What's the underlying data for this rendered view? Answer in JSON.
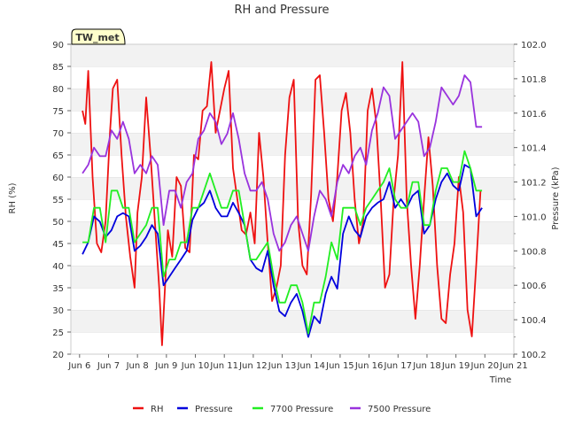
{
  "chart_data": {
    "type": "line",
    "title": "RH and Pressure",
    "station_label": "TW_met",
    "xlabel": "Time",
    "ylabel_left": "RH (%)",
    "ylabel_right": "Pressure (kPa)",
    "xlim": [
      5.7,
      21.0
    ],
    "ylim_left": [
      20,
      90
    ],
    "ylim_right": [
      100.2,
      102.0
    ],
    "x_ticks": [
      {
        "v": 6,
        "label": "Jun 6"
      },
      {
        "v": 7,
        "label": "Jun 7"
      },
      {
        "v": 8,
        "label": "Jun 8"
      },
      {
        "v": 9,
        "label": "Jun 9"
      },
      {
        "v": 10,
        "label": "Jun 10"
      },
      {
        "v": 11,
        "label": "Jun 11"
      },
      {
        "v": 12,
        "label": "Jun 12"
      },
      {
        "v": 13,
        "label": "Jun 13"
      },
      {
        "v": 14,
        "label": "Jun 14"
      },
      {
        "v": 15,
        "label": "Jun 15"
      },
      {
        "v": 16,
        "label": "Jun 16"
      },
      {
        "v": 17,
        "label": "Jun 17"
      },
      {
        "v": 18,
        "label": "Jun 18"
      },
      {
        "v": 19,
        "label": "Jun 19"
      },
      {
        "v": 20,
        "label": "Jun 20"
      },
      {
        "v": 21,
        "label": "Jun 21"
      }
    ],
    "y_ticks_left": [
      20,
      25,
      30,
      35,
      40,
      45,
      50,
      55,
      60,
      65,
      70,
      75,
      80,
      85,
      90
    ],
    "y_ticks_right": [
      {
        "v": 100.2,
        "label": "100.2"
      },
      {
        "v": 100.4,
        "label": "100.4"
      },
      {
        "v": 100.6,
        "label": "100.6"
      },
      {
        "v": 100.8,
        "label": "100.8"
      },
      {
        "v": 101.0,
        "label": "101.0"
      },
      {
        "v": 101.2,
        "label": "101.2"
      },
      {
        "v": 101.4,
        "label": "101.4"
      },
      {
        "v": 101.6,
        "label": "101.6"
      },
      {
        "v": 101.8,
        "label": "101.8"
      },
      {
        "v": 102.0,
        "label": "102.0"
      }
    ],
    "grid": "horizontal bands",
    "legend_position": "bottom",
    "series": [
      {
        "name": "RH",
        "axis": "left",
        "color": "#ee1111",
        "x": [
          6.1,
          6.2,
          6.3,
          6.45,
          6.6,
          6.75,
          6.9,
          7.05,
          7.15,
          7.3,
          7.45,
          7.6,
          7.75,
          7.9,
          8.0,
          8.15,
          8.3,
          8.45,
          8.6,
          8.75,
          8.85,
          8.95,
          9.05,
          9.2,
          9.35,
          9.5,
          9.65,
          9.8,
          9.95,
          10.1,
          10.25,
          10.4,
          10.55,
          10.7,
          10.85,
          11.0,
          11.15,
          11.3,
          11.45,
          11.6,
          11.75,
          11.9,
          12.05,
          12.2,
          12.35,
          12.5,
          12.65,
          12.8,
          12.95,
          13.1,
          13.25,
          13.4,
          13.55,
          13.7,
          13.85,
          14.0,
          14.15,
          14.3,
          14.45,
          14.6,
          14.75,
          14.9,
          15.05,
          15.2,
          15.35,
          15.5,
          15.65,
          15.8,
          15.95,
          16.1,
          16.25,
          16.4,
          16.55,
          16.7,
          16.85,
          17.0,
          17.15,
          17.3,
          17.45,
          17.6,
          17.75,
          17.9,
          18.05,
          18.2,
          18.35,
          18.5,
          18.65,
          18.8,
          18.95,
          19.1,
          19.25,
          19.4,
          19.55,
          19.7,
          19.85
        ],
        "y": [
          75,
          72,
          84,
          60,
          45,
          43,
          50,
          70,
          80,
          82,
          65,
          51,
          42,
          35,
          52,
          60,
          78,
          65,
          50,
          35,
          22,
          35,
          48,
          42,
          60,
          58,
          44,
          43,
          65,
          64,
          75,
          76,
          86,
          70,
          75,
          80,
          84,
          62,
          55,
          48,
          47,
          52,
          45,
          70,
          60,
          45,
          32,
          35,
          40,
          65,
          78,
          82,
          50,
          40,
          38,
          56,
          82,
          83,
          70,
          55,
          50,
          60,
          75,
          79,
          70,
          55,
          45,
          50,
          75,
          80,
          72,
          55,
          35,
          38,
          55,
          65,
          86,
          55,
          40,
          28,
          40,
          55,
          69,
          58,
          40,
          28,
          27,
          38,
          45,
          60,
          52,
          30,
          24,
          40,
          57
        ]
      },
      {
        "name": "Pressure",
        "axis": "right",
        "color": "#0000dd",
        "x": [
          6.1,
          6.3,
          6.5,
          6.7,
          6.9,
          7.1,
          7.3,
          7.5,
          7.7,
          7.9,
          8.1,
          8.3,
          8.5,
          8.7,
          8.9,
          9.1,
          9.3,
          9.5,
          9.7,
          9.9,
          10.1,
          10.3,
          10.5,
          10.7,
          10.9,
          11.1,
          11.3,
          11.5,
          11.7,
          11.9,
          12.1,
          12.3,
          12.5,
          12.7,
          12.9,
          13.1,
          13.3,
          13.5,
          13.7,
          13.9,
          14.1,
          14.3,
          14.5,
          14.7,
          14.9,
          15.1,
          15.3,
          15.5,
          15.7,
          15.9,
          16.1,
          16.3,
          16.5,
          16.7,
          16.9,
          17.1,
          17.3,
          17.5,
          17.7,
          17.9,
          18.1,
          18.3,
          18.5,
          18.7,
          18.9,
          19.1,
          19.3,
          19.5,
          19.7,
          19.9
        ],
        "y": [
          100.78,
          100.85,
          101.0,
          100.97,
          100.88,
          100.92,
          101.0,
          101.02,
          101.0,
          100.8,
          100.83,
          100.88,
          100.95,
          100.9,
          100.6,
          100.65,
          100.7,
          100.75,
          100.8,
          100.98,
          101.05,
          101.08,
          101.15,
          101.05,
          101.0,
          101.0,
          101.08,
          101.02,
          100.95,
          100.75,
          100.7,
          100.68,
          100.8,
          100.6,
          100.45,
          100.42,
          100.5,
          100.55,
          100.45,
          100.3,
          100.42,
          100.38,
          100.55,
          100.65,
          100.58,
          100.9,
          101.0,
          100.92,
          100.88,
          101.0,
          101.05,
          101.08,
          101.1,
          101.2,
          101.05,
          101.1,
          101.05,
          101.12,
          101.15,
          100.9,
          100.95,
          101.1,
          101.2,
          101.25,
          101.18,
          101.15,
          101.3,
          101.28,
          101.0,
          101.05
        ]
      },
      {
        "name": "7700 Pressure",
        "axis": "right",
        "color": "#22ee22",
        "x": [
          6.1,
          6.3,
          6.5,
          6.7,
          6.9,
          7.1,
          7.3,
          7.5,
          7.7,
          7.9,
          8.1,
          8.3,
          8.5,
          8.7,
          8.9,
          9.1,
          9.3,
          9.5,
          9.7,
          9.9,
          10.1,
          10.3,
          10.5,
          10.7,
          10.9,
          11.1,
          11.3,
          11.5,
          11.7,
          11.9,
          12.1,
          12.3,
          12.5,
          12.7,
          12.9,
          13.1,
          13.3,
          13.5,
          13.7,
          13.9,
          14.1,
          14.3,
          14.5,
          14.7,
          14.9,
          15.1,
          15.3,
          15.5,
          15.7,
          15.9,
          16.1,
          16.3,
          16.5,
          16.7,
          16.9,
          17.1,
          17.3,
          17.5,
          17.7,
          17.9,
          18.1,
          18.3,
          18.5,
          18.7,
          18.9,
          19.1,
          19.3,
          19.5,
          19.7,
          19.9
        ],
        "y": [
          100.85,
          100.85,
          101.05,
          101.05,
          100.85,
          101.15,
          101.15,
          101.05,
          101.05,
          100.85,
          100.9,
          100.95,
          101.05,
          101.05,
          100.65,
          100.75,
          100.75,
          100.85,
          100.85,
          101.05,
          101.05,
          101.15,
          101.25,
          101.15,
          101.05,
          101.05,
          101.15,
          101.15,
          100.95,
          100.75,
          100.75,
          100.8,
          100.85,
          100.65,
          100.5,
          100.5,
          100.6,
          100.6,
          100.5,
          100.32,
          100.5,
          100.5,
          100.65,
          100.85,
          100.75,
          101.05,
          101.05,
          101.05,
          100.95,
          101.05,
          101.1,
          101.15,
          101.2,
          101.28,
          101.1,
          101.05,
          101.05,
          101.2,
          101.2,
          100.95,
          100.95,
          101.15,
          101.28,
          101.28,
          101.2,
          101.2,
          101.38,
          101.28,
          101.15,
          101.15
        ]
      },
      {
        "name": "7500 Pressure",
        "axis": "right",
        "color": "#9933dd",
        "x": [
          6.1,
          6.3,
          6.5,
          6.7,
          6.9,
          7.1,
          7.3,
          7.5,
          7.7,
          7.9,
          8.1,
          8.3,
          8.5,
          8.7,
          8.9,
          9.1,
          9.3,
          9.5,
          9.7,
          9.9,
          10.1,
          10.3,
          10.5,
          10.7,
          10.9,
          11.1,
          11.3,
          11.5,
          11.7,
          11.9,
          12.1,
          12.3,
          12.5,
          12.7,
          12.9,
          13.1,
          13.3,
          13.5,
          13.7,
          13.9,
          14.1,
          14.3,
          14.5,
          14.7,
          14.9,
          15.1,
          15.3,
          15.5,
          15.7,
          15.9,
          16.1,
          16.3,
          16.5,
          16.7,
          16.9,
          17.1,
          17.3,
          17.5,
          17.7,
          17.9,
          18.1,
          18.3,
          18.5,
          18.7,
          18.9,
          19.1,
          19.3,
          19.5,
          19.7,
          19.9
        ],
        "y": [
          101.25,
          101.3,
          101.4,
          101.35,
          101.35,
          101.5,
          101.45,
          101.55,
          101.45,
          101.25,
          101.3,
          101.25,
          101.35,
          101.3,
          100.95,
          101.15,
          101.15,
          101.05,
          101.2,
          101.25,
          101.45,
          101.5,
          101.6,
          101.55,
          101.42,
          101.48,
          101.6,
          101.45,
          101.25,
          101.15,
          101.15,
          101.2,
          101.1,
          100.9,
          100.8,
          100.85,
          100.95,
          101.0,
          100.9,
          100.8,
          101.0,
          101.15,
          101.1,
          101.0,
          101.2,
          101.3,
          101.25,
          101.35,
          101.4,
          101.3,
          101.5,
          101.6,
          101.75,
          101.7,
          101.45,
          101.5,
          101.55,
          101.6,
          101.55,
          101.35,
          101.4,
          101.55,
          101.75,
          101.7,
          101.65,
          101.7,
          101.82,
          101.78,
          101.52,
          101.52
        ]
      }
    ]
  }
}
